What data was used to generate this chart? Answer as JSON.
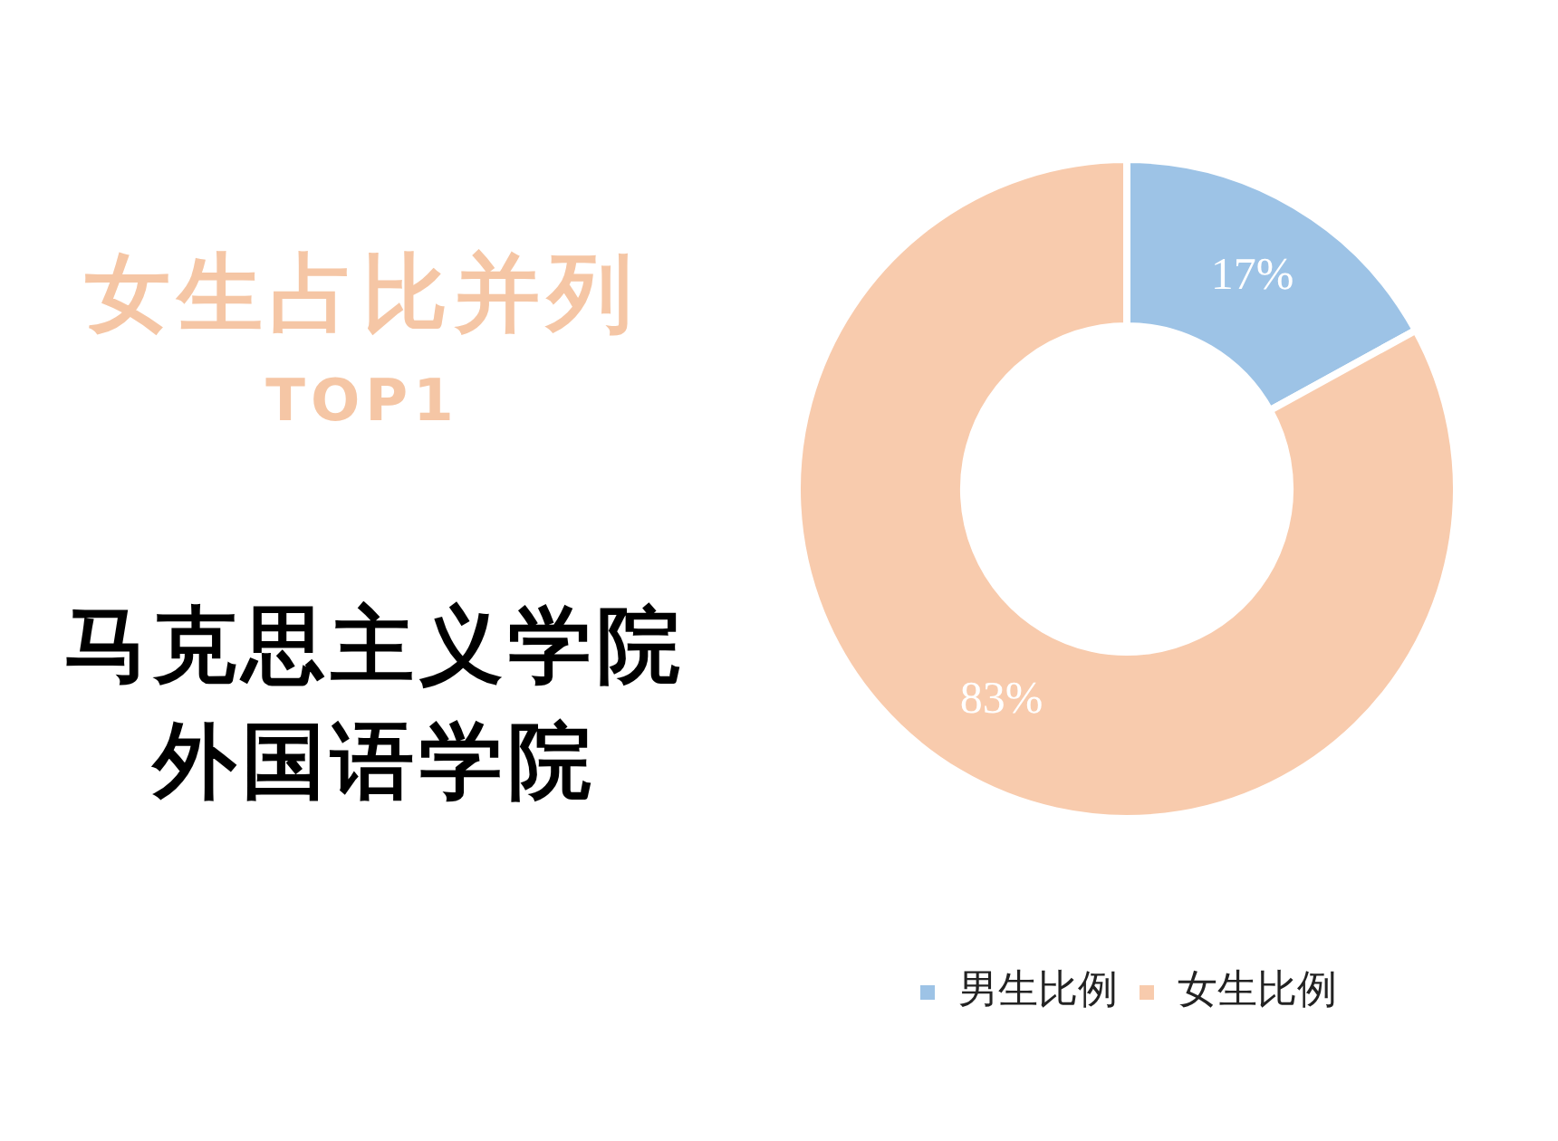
{
  "chart_data": {
    "type": "donut",
    "title": "女生占比并列\nTOP1",
    "subtitle": "马克思主义学院",
    "annotations": [
      "外国语学院"
    ],
    "categories": [
      "男生比例",
      "女生比例"
    ],
    "values": [
      17,
      83
    ],
    "colors": [
      "#9dc3e6",
      "#f8cbad"
    ],
    "value_labels": [
      "17%",
      "83%"
    ],
    "legend": "bottom"
  }
}
